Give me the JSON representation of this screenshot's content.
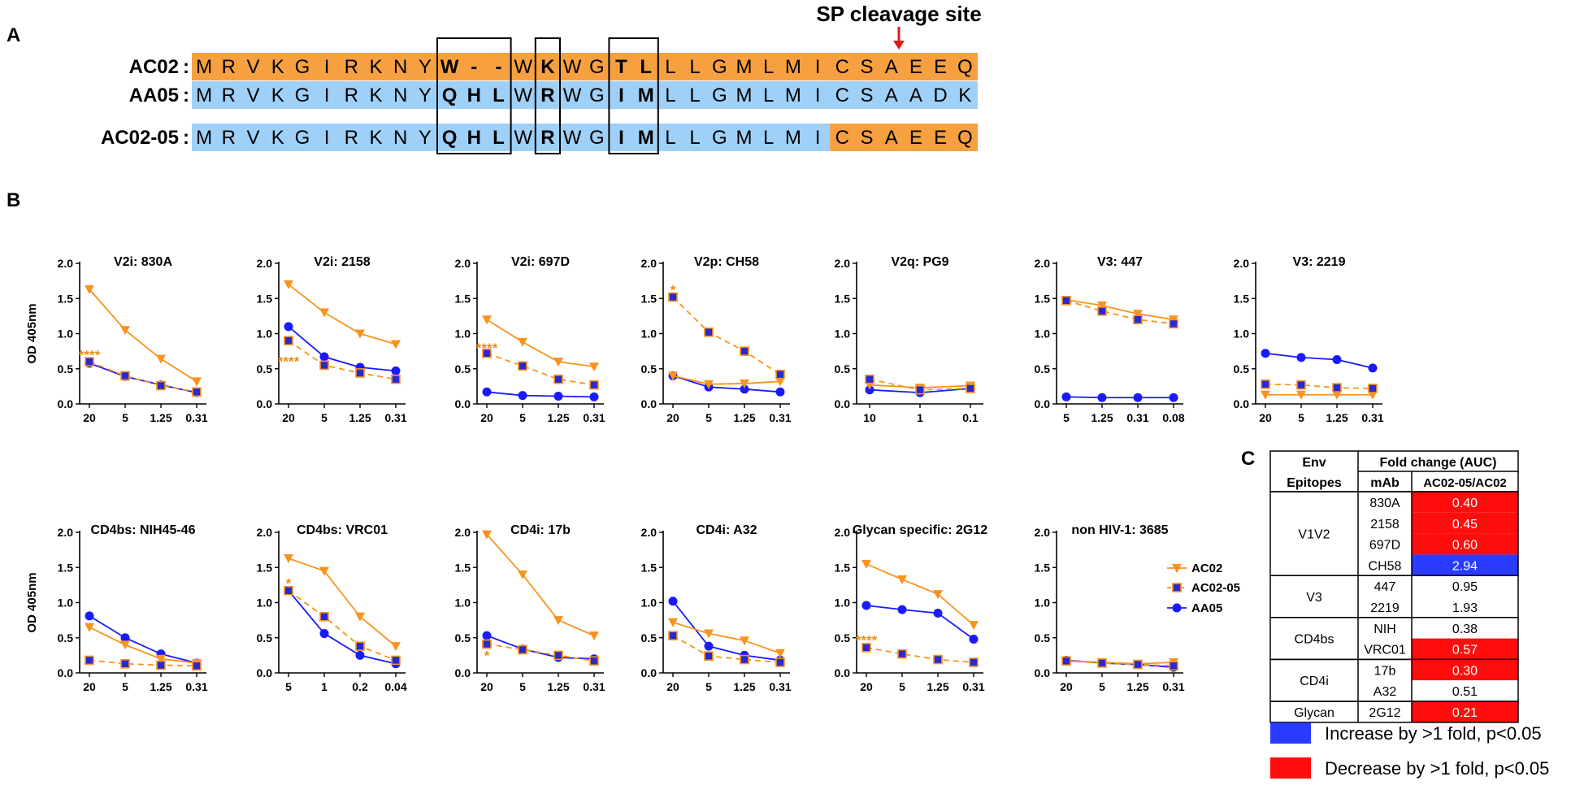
{
  "panel_labels": {
    "a": "A",
    "b": "B",
    "c": "C"
  },
  "alignment": {
    "cleavage_label": "SP cleavage site",
    "rows": [
      {
        "label": "AC02",
        "colon": ":",
        "residues": [
          "M",
          "R",
          "V",
          "K",
          "G",
          "I",
          "R",
          "K",
          "N",
          "Y",
          "W",
          "-",
          "-",
          "W",
          "K",
          "W",
          "G",
          "T",
          "L",
          "L",
          "L",
          "G",
          "M",
          "L",
          "M",
          "I",
          "C",
          "S",
          "A",
          "E",
          "E",
          "Q"
        ],
        "colors": [
          "o",
          "o",
          "o",
          "o",
          "o",
          "o",
          "o",
          "o",
          "o",
          "o",
          "o",
          "o",
          "o",
          "o",
          "o",
          "o",
          "o",
          "o",
          "o",
          "o",
          "o",
          "o",
          "o",
          "o",
          "o",
          "o",
          "o",
          "o",
          "o",
          "o",
          "o",
          "o"
        ]
      },
      {
        "label": "AA05",
        "colon": ":",
        "residues": [
          "M",
          "R",
          "V",
          "K",
          "G",
          "I",
          "R",
          "K",
          "N",
          "Y",
          "Q",
          "H",
          "L",
          "W",
          "R",
          "W",
          "G",
          "I",
          "M",
          "L",
          "L",
          "G",
          "M",
          "L",
          "M",
          "I",
          "C",
          "S",
          "A",
          "A",
          "D",
          "K"
        ],
        "colors": [
          "b",
          "b",
          "b",
          "b",
          "b",
          "b",
          "b",
          "b",
          "b",
          "b",
          "b",
          "b",
          "b",
          "b",
          "b",
          "b",
          "b",
          "b",
          "b",
          "b",
          "b",
          "b",
          "b",
          "b",
          "b",
          "b",
          "b",
          "b",
          "b",
          "b",
          "b",
          "b"
        ]
      },
      {
        "label": "AC02-05",
        "colon": ":",
        "residues": [
          "M",
          "R",
          "V",
          "K",
          "G",
          "I",
          "R",
          "K",
          "N",
          "Y",
          "Q",
          "H",
          "L",
          "W",
          "R",
          "W",
          "G",
          "I",
          "M",
          "L",
          "L",
          "G",
          "M",
          "L",
          "M",
          "I",
          "C",
          "S",
          "A",
          "E",
          "E",
          "Q"
        ],
        "colors": [
          "b",
          "b",
          "b",
          "b",
          "b",
          "b",
          "b",
          "b",
          "b",
          "b",
          "b",
          "b",
          "b",
          "b",
          "b",
          "b",
          "b",
          "b",
          "b",
          "b",
          "b",
          "b",
          "b",
          "b",
          "b",
          "b",
          "o",
          "o",
          "o",
          "o",
          "o",
          "o"
        ]
      }
    ],
    "bold_positions": [
      10,
      11,
      12,
      14,
      17,
      18
    ],
    "boxes": [
      [
        10,
        12
      ],
      [
        14,
        14
      ],
      [
        17,
        18
      ]
    ],
    "cleavage_after_position": 28
  },
  "colors": {
    "orange": "#f7931e",
    "blue": "#1a1aff",
    "orange_bg": "#f7a040",
    "blue_bg": "#9fd0f7",
    "red_cell": "#ff0d0d",
    "blue_cell": "#2b3bff",
    "sig": "#e8901f"
  },
  "legend": {
    "items": [
      {
        "name": "AC02",
        "marker": "tri",
        "dash": false
      },
      {
        "name": "AC02-05",
        "marker": "sq",
        "dash": true
      },
      {
        "name": "AA05",
        "marker": "circ",
        "dash": false
      }
    ]
  },
  "chart_data": [
    {
      "type": "line",
      "title": "V2i: 830A",
      "ylabel": "OD 405nm",
      "ylim": [
        0,
        2
      ],
      "yticks": [
        "0.0",
        "0.5",
        "1.0",
        "1.5",
        "2.0"
      ],
      "categories": [
        "20",
        "5",
        "1.25",
        "0.31"
      ],
      "series": [
        {
          "name": "AC02",
          "values": [
            1.63,
            1.05,
            0.64,
            0.32
          ]
        },
        {
          "name": "AC02-05",
          "values": [
            0.6,
            0.4,
            0.26,
            0.17
          ]
        },
        {
          "name": "AA05",
          "values": [
            0.58,
            0.39,
            0.27,
            0.16
          ]
        }
      ],
      "annotation": {
        "text": "****",
        "category_index": 0,
        "value": 0.72
      }
    },
    {
      "type": "line",
      "title": "V2i: 2158",
      "ylabel": "",
      "ylim": [
        0,
        2
      ],
      "yticks": [
        "0.0",
        "0.5",
        "1.0",
        "1.5",
        "2.0"
      ],
      "categories": [
        "20",
        "5",
        "1.25",
        "0.31"
      ],
      "series": [
        {
          "name": "AC02",
          "values": [
            1.7,
            1.3,
            1.0,
            0.85
          ]
        },
        {
          "name": "AC02-05",
          "values": [
            0.9,
            0.55,
            0.44,
            0.35
          ]
        },
        {
          "name": "AA05",
          "values": [
            1.1,
            0.67,
            0.52,
            0.47
          ]
        }
      ],
      "annotation": {
        "text": "****",
        "category_index": 0,
        "value": 0.63
      }
    },
    {
      "type": "line",
      "title": "V2i: 697D",
      "ylabel": "",
      "ylim": [
        0,
        2
      ],
      "yticks": [
        "0.0",
        "0.5",
        "1.0",
        "1.5",
        "2.0"
      ],
      "categories": [
        "20",
        "5",
        "1.25",
        "0.31"
      ],
      "series": [
        {
          "name": "AC02",
          "values": [
            1.2,
            0.88,
            0.6,
            0.53
          ]
        },
        {
          "name": "AC02-05",
          "values": [
            0.72,
            0.54,
            0.35,
            0.27
          ]
        },
        {
          "name": "AA05",
          "values": [
            0.17,
            0.12,
            0.11,
            0.1
          ]
        }
      ],
      "annotation": {
        "text": "****",
        "category_index": 0,
        "value": 0.82
      }
    },
    {
      "type": "line",
      "title": "V2p: CH58",
      "ylabel": "",
      "ylim": [
        0,
        2
      ],
      "yticks": [
        "0.0",
        "0.5",
        "1.0",
        "1.5",
        "2.0"
      ],
      "categories": [
        "20",
        "5",
        "1.25",
        "0.31"
      ],
      "series": [
        {
          "name": "AC02",
          "values": [
            0.4,
            0.28,
            0.29,
            0.32
          ]
        },
        {
          "name": "AC02-05",
          "values": [
            1.52,
            1.02,
            0.75,
            0.42
          ]
        },
        {
          "name": "AA05",
          "values": [
            0.4,
            0.24,
            0.21,
            0.17
          ]
        }
      ],
      "annotation": {
        "text": "*",
        "category_index": 0,
        "value": 1.65
      }
    },
    {
      "type": "line",
      "title": "V2q: PG9",
      "ylabel": "",
      "ylim": [
        0,
        2
      ],
      "yticks": [
        "0.0",
        "0.5",
        "1.0",
        "1.5",
        "2.0"
      ],
      "categories": [
        "10",
        "1",
        "0.1"
      ],
      "series": [
        {
          "name": "AC02",
          "values": [
            0.27,
            0.23,
            0.26
          ]
        },
        {
          "name": "AC02-05",
          "values": [
            0.35,
            0.2,
            0.22
          ]
        },
        {
          "name": "AA05",
          "values": [
            0.2,
            0.16,
            0.22
          ]
        }
      ],
      "annotation": null
    },
    {
      "type": "line",
      "title": "V3: 447",
      "ylabel": "",
      "ylim": [
        0,
        2
      ],
      "yticks": [
        "0.0",
        "0.5",
        "1.0",
        "1.5",
        "2.0"
      ],
      "categories": [
        "5",
        "1.25",
        "0.31",
        "0.08"
      ],
      "series": [
        {
          "name": "AC02",
          "values": [
            1.48,
            1.4,
            1.28,
            1.2
          ]
        },
        {
          "name": "AC02-05",
          "values": [
            1.47,
            1.32,
            1.2,
            1.14
          ]
        },
        {
          "name": "AA05",
          "values": [
            0.1,
            0.09,
            0.09,
            0.09
          ]
        }
      ],
      "annotation": null
    },
    {
      "type": "line",
      "title": "V3: 2219",
      "ylabel": "",
      "ylim": [
        0,
        2
      ],
      "yticks": [
        "0.0",
        "0.5",
        "1.0",
        "1.5",
        "2.0"
      ],
      "categories": [
        "20",
        "5",
        "1.25",
        "0.31"
      ],
      "series": [
        {
          "name": "AC02",
          "values": [
            0.13,
            0.13,
            0.13,
            0.13
          ]
        },
        {
          "name": "AC02-05",
          "values": [
            0.28,
            0.27,
            0.23,
            0.22
          ]
        },
        {
          "name": "AA05",
          "values": [
            0.72,
            0.66,
            0.63,
            0.51
          ]
        }
      ],
      "annotation": null
    },
    {
      "type": "line",
      "title": "CD4bs: NIH45-46",
      "ylabel": "OD 405nm",
      "ylim": [
        0,
        2
      ],
      "yticks": [
        "0.0",
        "0.5",
        "1.0",
        "1.5",
        "2.0"
      ],
      "categories": [
        "20",
        "5",
        "1.25",
        "0.31"
      ],
      "series": [
        {
          "name": "AC02",
          "values": [
            0.65,
            0.4,
            0.2,
            0.14
          ]
        },
        {
          "name": "AC02-05",
          "values": [
            0.18,
            0.13,
            0.11,
            0.1
          ]
        },
        {
          "name": "AA05",
          "values": [
            0.81,
            0.5,
            0.27,
            0.14
          ]
        }
      ],
      "annotation": null
    },
    {
      "type": "line",
      "title": "CD4bs: VRC01",
      "ylabel": "",
      "ylim": [
        0,
        2
      ],
      "yticks": [
        "0.0",
        "0.5",
        "1.0",
        "1.5",
        "2.0"
      ],
      "categories": [
        "5",
        "1",
        "0.2",
        "0.04"
      ],
      "series": [
        {
          "name": "AC02",
          "values": [
            1.63,
            1.45,
            0.8,
            0.38
          ]
        },
        {
          "name": "AC02-05",
          "values": [
            1.17,
            0.8,
            0.38,
            0.18
          ]
        },
        {
          "name": "AA05",
          "values": [
            1.17,
            0.56,
            0.25,
            0.13
          ]
        }
      ],
      "annotation": {
        "text": "*",
        "category_index": 0,
        "value": 1.3
      }
    },
    {
      "type": "line",
      "title": "CD4i: 17b",
      "ylabel": "",
      "ylim": [
        0,
        2
      ],
      "yticks": [
        "0.0",
        "0.5",
        "1.0",
        "1.5",
        "2.0"
      ],
      "categories": [
        "20",
        "5",
        "1.25",
        "0.31"
      ],
      "series": [
        {
          "name": "AC02",
          "values": [
            1.97,
            1.4,
            0.75,
            0.53
          ]
        },
        {
          "name": "AC02-05",
          "values": [
            0.41,
            0.33,
            0.25,
            0.17
          ]
        },
        {
          "name": "AA05",
          "values": [
            0.53,
            0.34,
            0.22,
            0.2
          ]
        }
      ],
      "annotation": {
        "text": "*",
        "category_index": 0,
        "value": 0.27
      }
    },
    {
      "type": "line",
      "title": "CD4i: A32",
      "ylabel": "",
      "ylim": [
        0,
        2
      ],
      "yticks": [
        "0.0",
        "0.5",
        "1.0",
        "1.5",
        "2.0"
      ],
      "categories": [
        "20",
        "5",
        "1.25",
        "0.31"
      ],
      "series": [
        {
          "name": "AC02",
          "values": [
            0.72,
            0.56,
            0.46,
            0.28
          ]
        },
        {
          "name": "AC02-05",
          "values": [
            0.53,
            0.24,
            0.19,
            0.15
          ]
        },
        {
          "name": "AA05",
          "values": [
            1.02,
            0.38,
            0.25,
            0.18
          ]
        }
      ],
      "annotation": null
    },
    {
      "type": "line",
      "title": "Glycan specific: 2G12",
      "ylabel": "",
      "ylim": [
        0,
        2
      ],
      "yticks": [
        "0.0",
        "0.5",
        "1.0",
        "1.5",
        "2.0"
      ],
      "categories": [
        "20",
        "5",
        "1.25",
        "0.31"
      ],
      "series": [
        {
          "name": "AC02",
          "values": [
            1.55,
            1.33,
            1.12,
            0.68
          ]
        },
        {
          "name": "AC02-05",
          "values": [
            0.36,
            0.27,
            0.19,
            0.15
          ]
        },
        {
          "name": "AA05",
          "values": [
            0.96,
            0.9,
            0.85,
            0.48
          ]
        }
      ],
      "annotation": {
        "text": "****",
        "category_index": 0,
        "value": 0.49
      }
    },
    {
      "type": "line",
      "title": "non HIV-1: 3685",
      "ylabel": "",
      "ylim": [
        0,
        2
      ],
      "yticks": [
        "0.0",
        "0.5",
        "1.0",
        "1.5",
        "2.0"
      ],
      "categories": [
        "20",
        "5",
        "1.25",
        "0.31"
      ],
      "series": [
        {
          "name": "AC02",
          "values": [
            0.17,
            0.15,
            0.13,
            0.15
          ]
        },
        {
          "name": "AC02-05",
          "values": [
            0.17,
            0.14,
            0.12,
            0.1
          ]
        },
        {
          "name": "AA05",
          "values": [
            0.18,
            0.14,
            0.12,
            0.08
          ]
        }
      ],
      "annotation": null
    }
  ],
  "table": {
    "col1_header": [
      "Env",
      "Epitopes"
    ],
    "group_header": "Fold change (AUC)",
    "mab_header": "mAb",
    "ratio_header": "AC02-05/AC02",
    "groups": [
      {
        "name": "V1V2",
        "rows": [
          {
            "mab": "830A",
            "value": "0.40",
            "highlight": "red"
          },
          {
            "mab": "2158",
            "value": "0.45",
            "highlight": "red"
          },
          {
            "mab": "697D",
            "value": "0.60",
            "highlight": "red"
          },
          {
            "mab": "CH58",
            "value": "2.94",
            "highlight": "blue"
          }
        ]
      },
      {
        "name": "V3",
        "rows": [
          {
            "mab": "447",
            "value": "0.95",
            "highlight": "none"
          },
          {
            "mab": "2219",
            "value": "1.93",
            "highlight": "none"
          }
        ]
      },
      {
        "name": "CD4bs",
        "rows": [
          {
            "mab": "NIH",
            "value": "0.38",
            "highlight": "none"
          },
          {
            "mab": "VRC01",
            "value": "0.57",
            "highlight": "red"
          }
        ]
      },
      {
        "name": "CD4i",
        "rows": [
          {
            "mab": "17b",
            "value": "0.30",
            "highlight": "red"
          },
          {
            "mab": "A32",
            "value": "0.51",
            "highlight": "none"
          }
        ]
      },
      {
        "name": "Glycan",
        "rows": [
          {
            "mab": "2G12",
            "value": "0.21",
            "highlight": "red"
          }
        ]
      }
    ],
    "key": [
      {
        "color": "blue",
        "text": "Increase by >1 fold, p<0.05"
      },
      {
        "color": "red",
        "text": "Decrease by >1 fold, p<0.05"
      }
    ]
  }
}
